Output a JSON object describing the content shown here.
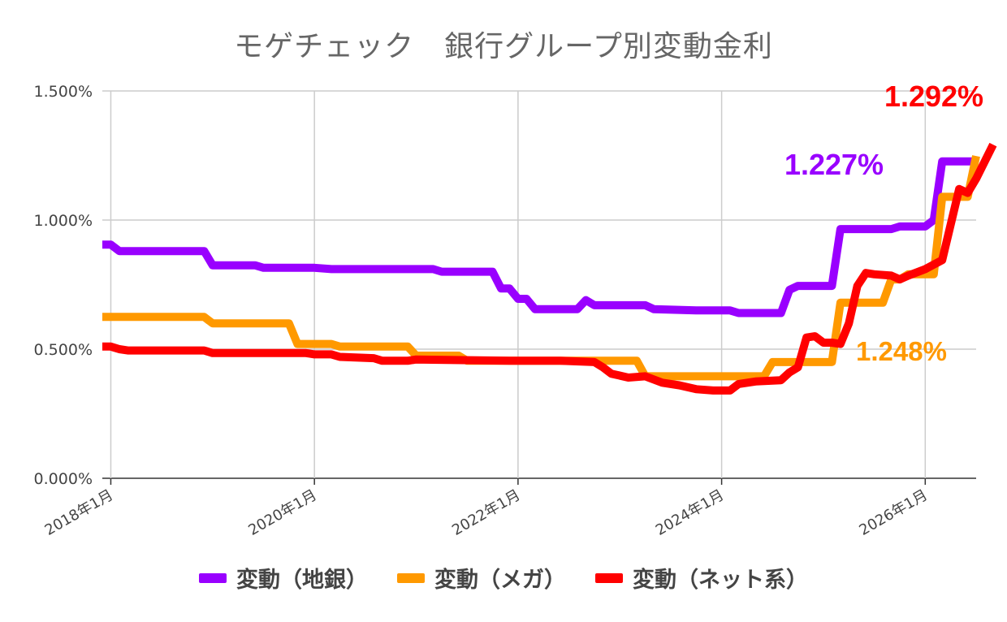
{
  "chart_data": {
    "type": "line",
    "title": "モゲチェック　銀行グループ別変動金利",
    "xlabel": "",
    "ylabel": "",
    "x_ticks": [
      "2018年1月",
      "2020年1月",
      "2022年1月",
      "2024年1月",
      "2026年1月"
    ],
    "y_ticks": [
      "1.500%",
      "1.000%",
      "0.500%",
      "0.000%"
    ],
    "ylim": [
      0,
      1.5
    ],
    "xlim": [
      "2017-12",
      "2026-07"
    ],
    "grid": true,
    "legend_position": "bottom",
    "series": [
      {
        "name": "変動（地銀）",
        "color": "#9900ff",
        "end_label": "1.227%",
        "points": [
          [
            "2017-12",
            0.905
          ],
          [
            "2018-01",
            0.905
          ],
          [
            "2018-02",
            0.88
          ],
          [
            "2018-12",
            0.88
          ],
          [
            "2019-01",
            0.825
          ],
          [
            "2019-06",
            0.825
          ],
          [
            "2019-07",
            0.815
          ],
          [
            "2020-01",
            0.815
          ],
          [
            "2020-03",
            0.81
          ],
          [
            "2021-03",
            0.81
          ],
          [
            "2021-04",
            0.8
          ],
          [
            "2021-10",
            0.8
          ],
          [
            "2021-11",
            0.735
          ],
          [
            "2021-12",
            0.735
          ],
          [
            "2022-01",
            0.695
          ],
          [
            "2022-02",
            0.695
          ],
          [
            "2022-03",
            0.655
          ],
          [
            "2022-08",
            0.655
          ],
          [
            "2022-09",
            0.69
          ],
          [
            "2022-10",
            0.67
          ],
          [
            "2023-04",
            0.67
          ],
          [
            "2023-05",
            0.655
          ],
          [
            "2023-10",
            0.65
          ],
          [
            "2024-02",
            0.65
          ],
          [
            "2024-03",
            0.64
          ],
          [
            "2024-08",
            0.64
          ],
          [
            "2024-09",
            0.73
          ],
          [
            "2024-10",
            0.745
          ],
          [
            "2025-02",
            0.745
          ],
          [
            "2025-03",
            0.965
          ],
          [
            "2025-09",
            0.965
          ],
          [
            "2025-10",
            0.975
          ],
          [
            "2026-01",
            0.975
          ],
          [
            "2026-02",
            1.0
          ],
          [
            "2026-03",
            1.227
          ],
          [
            "2026-07",
            1.227
          ]
        ]
      },
      {
        "name": "変動（メガ）",
        "color": "#ff9900",
        "end_label": "1.248%",
        "points": [
          [
            "2017-12",
            0.625
          ],
          [
            "2018-12",
            0.625
          ],
          [
            "2019-01",
            0.6
          ],
          [
            "2019-10",
            0.6
          ],
          [
            "2019-11",
            0.52
          ],
          [
            "2020-03",
            0.52
          ],
          [
            "2020-04",
            0.51
          ],
          [
            "2020-12",
            0.51
          ],
          [
            "2021-01",
            0.475
          ],
          [
            "2021-06",
            0.475
          ],
          [
            "2021-07",
            0.455
          ],
          [
            "2023-03",
            0.455
          ],
          [
            "2023-04",
            0.395
          ],
          [
            "2024-06",
            0.395
          ],
          [
            "2024-07",
            0.45
          ],
          [
            "2025-02",
            0.45
          ],
          [
            "2025-03",
            0.68
          ],
          [
            "2025-08",
            0.68
          ],
          [
            "2025-09",
            0.77
          ],
          [
            "2025-10",
            0.77
          ],
          [
            "2025-11",
            0.79
          ],
          [
            "2026-01",
            0.79
          ],
          [
            "2026-02",
            0.79
          ],
          [
            "2026-03",
            1.09
          ],
          [
            "2026-06",
            1.09
          ],
          [
            "2026-07",
            1.248
          ]
        ]
      },
      {
        "name": "変動（ネット系）",
        "color": "#ff0000",
        "end_label": "1.292%",
        "points": [
          [
            "2017-12",
            0.51
          ],
          [
            "2018-01",
            0.51
          ],
          [
            "2018-02",
            0.5
          ],
          [
            "2018-03",
            0.495
          ],
          [
            "2018-12",
            0.495
          ],
          [
            "2019-01",
            0.485
          ],
          [
            "2019-12",
            0.485
          ],
          [
            "2020-01",
            0.48
          ],
          [
            "2020-03",
            0.48
          ],
          [
            "2020-04",
            0.47
          ],
          [
            "2020-08",
            0.465
          ],
          [
            "2020-09",
            0.455
          ],
          [
            "2020-12",
            0.455
          ],
          [
            "2021-01",
            0.46
          ],
          [
            "2021-12",
            0.455
          ],
          [
            "2022-06",
            0.455
          ],
          [
            "2022-10",
            0.45
          ],
          [
            "2022-11",
            0.43
          ],
          [
            "2022-12",
            0.405
          ],
          [
            "2023-02",
            0.39
          ],
          [
            "2023-04",
            0.395
          ],
          [
            "2023-06",
            0.37
          ],
          [
            "2023-08",
            0.36
          ],
          [
            "2023-10",
            0.345
          ],
          [
            "2023-12",
            0.34
          ],
          [
            "2024-02",
            0.34
          ],
          [
            "2024-03",
            0.365
          ],
          [
            "2024-05",
            0.375
          ],
          [
            "2024-08",
            0.38
          ],
          [
            "2024-09",
            0.41
          ],
          [
            "2024-10",
            0.43
          ],
          [
            "2024-11",
            0.545
          ],
          [
            "2024-12",
            0.55
          ],
          [
            "2025-01",
            0.525
          ],
          [
            "2025-02",
            0.525
          ],
          [
            "2025-03",
            0.52
          ],
          [
            "2025-04",
            0.6
          ],
          [
            "2025-05",
            0.745
          ],
          [
            "2025-06",
            0.795
          ],
          [
            "2025-07",
            0.79
          ],
          [
            "2025-09",
            0.785
          ],
          [
            "2025-10",
            0.77
          ],
          [
            "2025-11",
            0.785
          ],
          [
            "2026-01",
            0.81
          ],
          [
            "2026-03",
            0.845
          ],
          [
            "2026-05",
            1.12
          ],
          [
            "2026-06",
            1.105
          ],
          [
            "2026-07",
            1.16
          ],
          [
            "2026-09",
            1.292
          ]
        ]
      }
    ]
  }
}
